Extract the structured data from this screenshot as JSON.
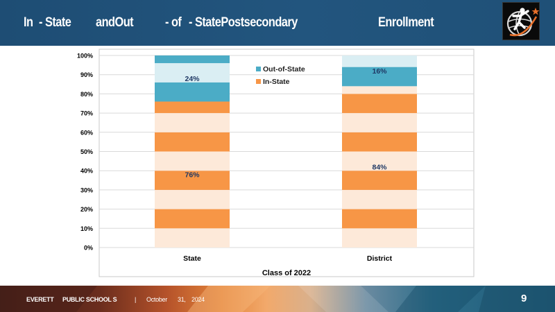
{
  "slide": {
    "title_parts": [
      "In",
      "- State",
      "andOut",
      "- of",
      "- StatePostsecondary",
      "Enrollment"
    ],
    "footer": {
      "org_part1": "EVERETT",
      "org_part2": "PUBLIC SCHOOL S",
      "separator": "|",
      "date_month": "October",
      "date_day": "31,",
      "date_year": "2024"
    },
    "page_number": "9",
    "logo_icon": "runner-globe-logo-icon"
  },
  "chart_data": {
    "type": "bar",
    "stacked": true,
    "percent": true,
    "categories": [
      "State",
      "District"
    ],
    "series": [
      {
        "name": "In-State",
        "values": [
          76,
          84
        ],
        "labels": [
          "76%",
          "84%"
        ],
        "color": "#f79646",
        "stripe_color": "#fde9d9"
      },
      {
        "name": "Out-of-State",
        "values": [
          24,
          16
        ],
        "labels": [
          "24%",
          "16%"
        ],
        "color": "#4bacc6",
        "stripe_color": "#daeef3"
      }
    ],
    "xlabel": "Class of 2022",
    "ylabel": "",
    "ylim": [
      0,
      100
    ],
    "yticks": [
      "0%",
      "10%",
      "20%",
      "30%",
      "40%",
      "50%",
      "60%",
      "70%",
      "80%",
      "90%",
      "100%"
    ],
    "grid": true,
    "legend_position": "top-center"
  }
}
